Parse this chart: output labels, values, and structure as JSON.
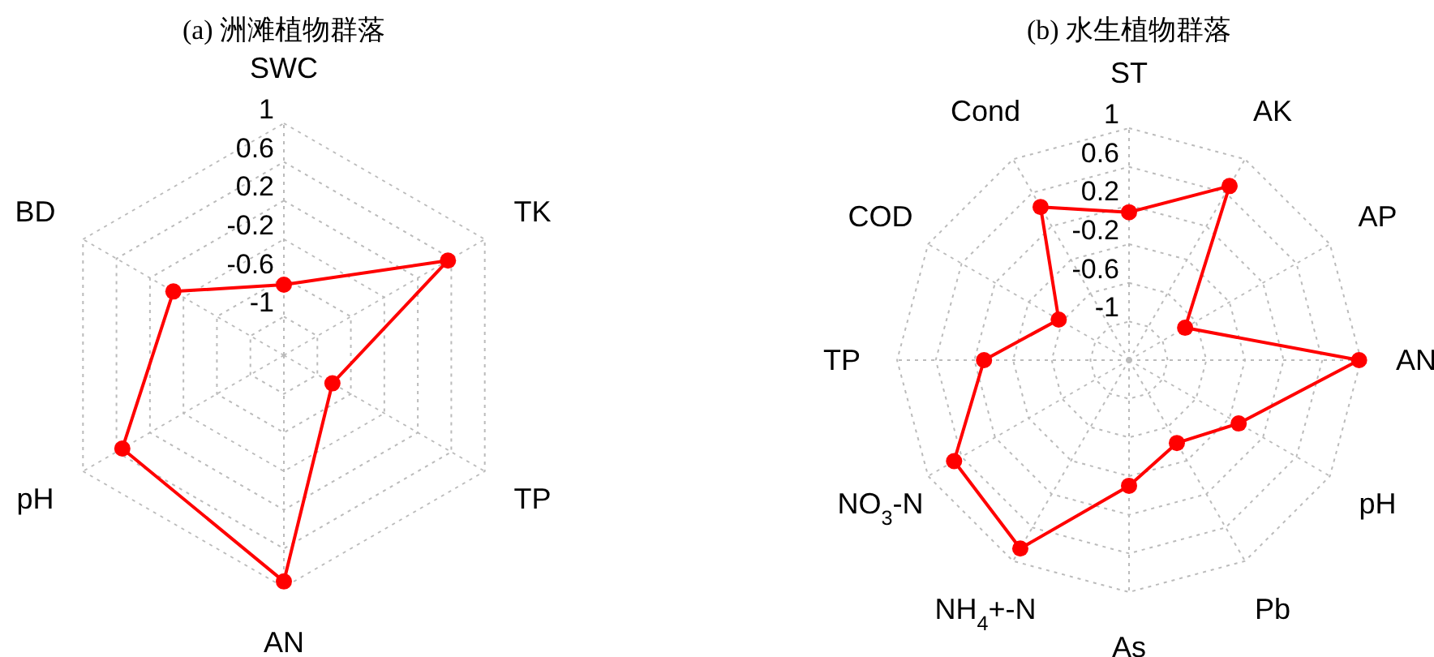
{
  "chart_data": [
    {
      "type": "radar",
      "title": "(a) 洲滩植物群落",
      "categories": [
        "SWC",
        "TK",
        "TP",
        "AN",
        "pH",
        "BD"
      ],
      "ylim": [
        -1.4,
        1
      ],
      "yticks": [
        -1,
        -0.6,
        -0.2,
        0.2,
        0.6,
        1
      ],
      "grid": true,
      "marker": "circle",
      "line_style": "solid",
      "series": [
        {
          "color": "#ff0000",
          "values": [
            -0.67,
            0.56,
            -0.82,
            0.94,
            0.53,
            -0.08
          ]
        }
      ]
    },
    {
      "type": "radar",
      "title": "(b) 水生植物群落",
      "categories": [
        "ST",
        "AK",
        "AP",
        "AN",
        "pH",
        "Pb",
        "As",
        "NH$_{4}$+-N",
        "NO$_{3}$-N",
        "TP",
        "COD",
        "Cond"
      ],
      "ylim": [
        -1.4,
        1
      ],
      "yticks": [
        -1,
        -0.6,
        -0.2,
        0.2,
        0.6,
        1
      ],
      "grid": true,
      "marker": "circle",
      "line_style": "solid",
      "series": [
        {
          "color": "#ff0000",
          "values": [
            0.13,
            0.68,
            -0.73,
            0.98,
            -0.09,
            -0.41,
            -0.1,
            0.85,
            0.69,
            0.1,
            -0.56,
            0.43
          ]
        }
      ]
    }
  ]
}
